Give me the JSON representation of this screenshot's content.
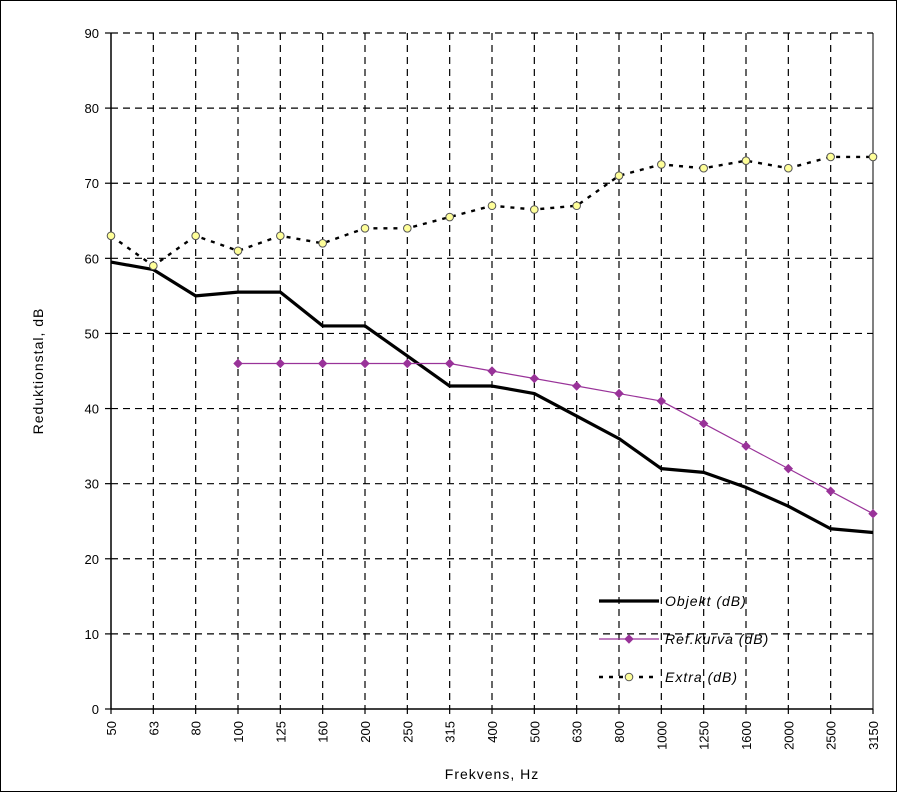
{
  "chart_data": {
    "type": "line",
    "xlabel": "Frekvens, Hz",
    "ylabel": "Reduktionstal, dB",
    "categories": [
      "50",
      "63",
      "80",
      "100",
      "125",
      "160",
      "200",
      "250",
      "315",
      "400",
      "500",
      "630",
      "800",
      "1000",
      "1250",
      "1600",
      "2000",
      "2500",
      "3150"
    ],
    "ylim": [
      0,
      90
    ],
    "yticks": [
      0,
      10,
      20,
      30,
      40,
      50,
      60,
      70,
      80,
      90
    ],
    "grid": true,
    "legend_position": "bottom-right",
    "series": [
      {
        "name": "Objekt (dB)",
        "color": "#000000",
        "style": "solid-thick",
        "marker": "none",
        "values": [
          59.5,
          58.5,
          55,
          55.5,
          55.5,
          51,
          51,
          47,
          43,
          43,
          42,
          39,
          36,
          32,
          31.5,
          29.5,
          27,
          24,
          23.5
        ]
      },
      {
        "name": "Ref.kurva (dB)",
        "color": "#993399",
        "style": "solid-thin",
        "marker": "diamond",
        "values": [
          null,
          null,
          null,
          46,
          46,
          46,
          46,
          46,
          46,
          45,
          44,
          43,
          42,
          41,
          38,
          35,
          32,
          29,
          26
        ]
      },
      {
        "name": "Extra (dB)",
        "color": "#000000",
        "style": "dashed",
        "marker": "circle-yellow",
        "values": [
          63,
          59,
          63,
          61,
          63,
          62,
          64,
          64,
          65.5,
          67,
          66.5,
          67,
          71,
          72.5,
          72,
          73,
          72,
          73.5,
          73.5
        ]
      }
    ]
  }
}
